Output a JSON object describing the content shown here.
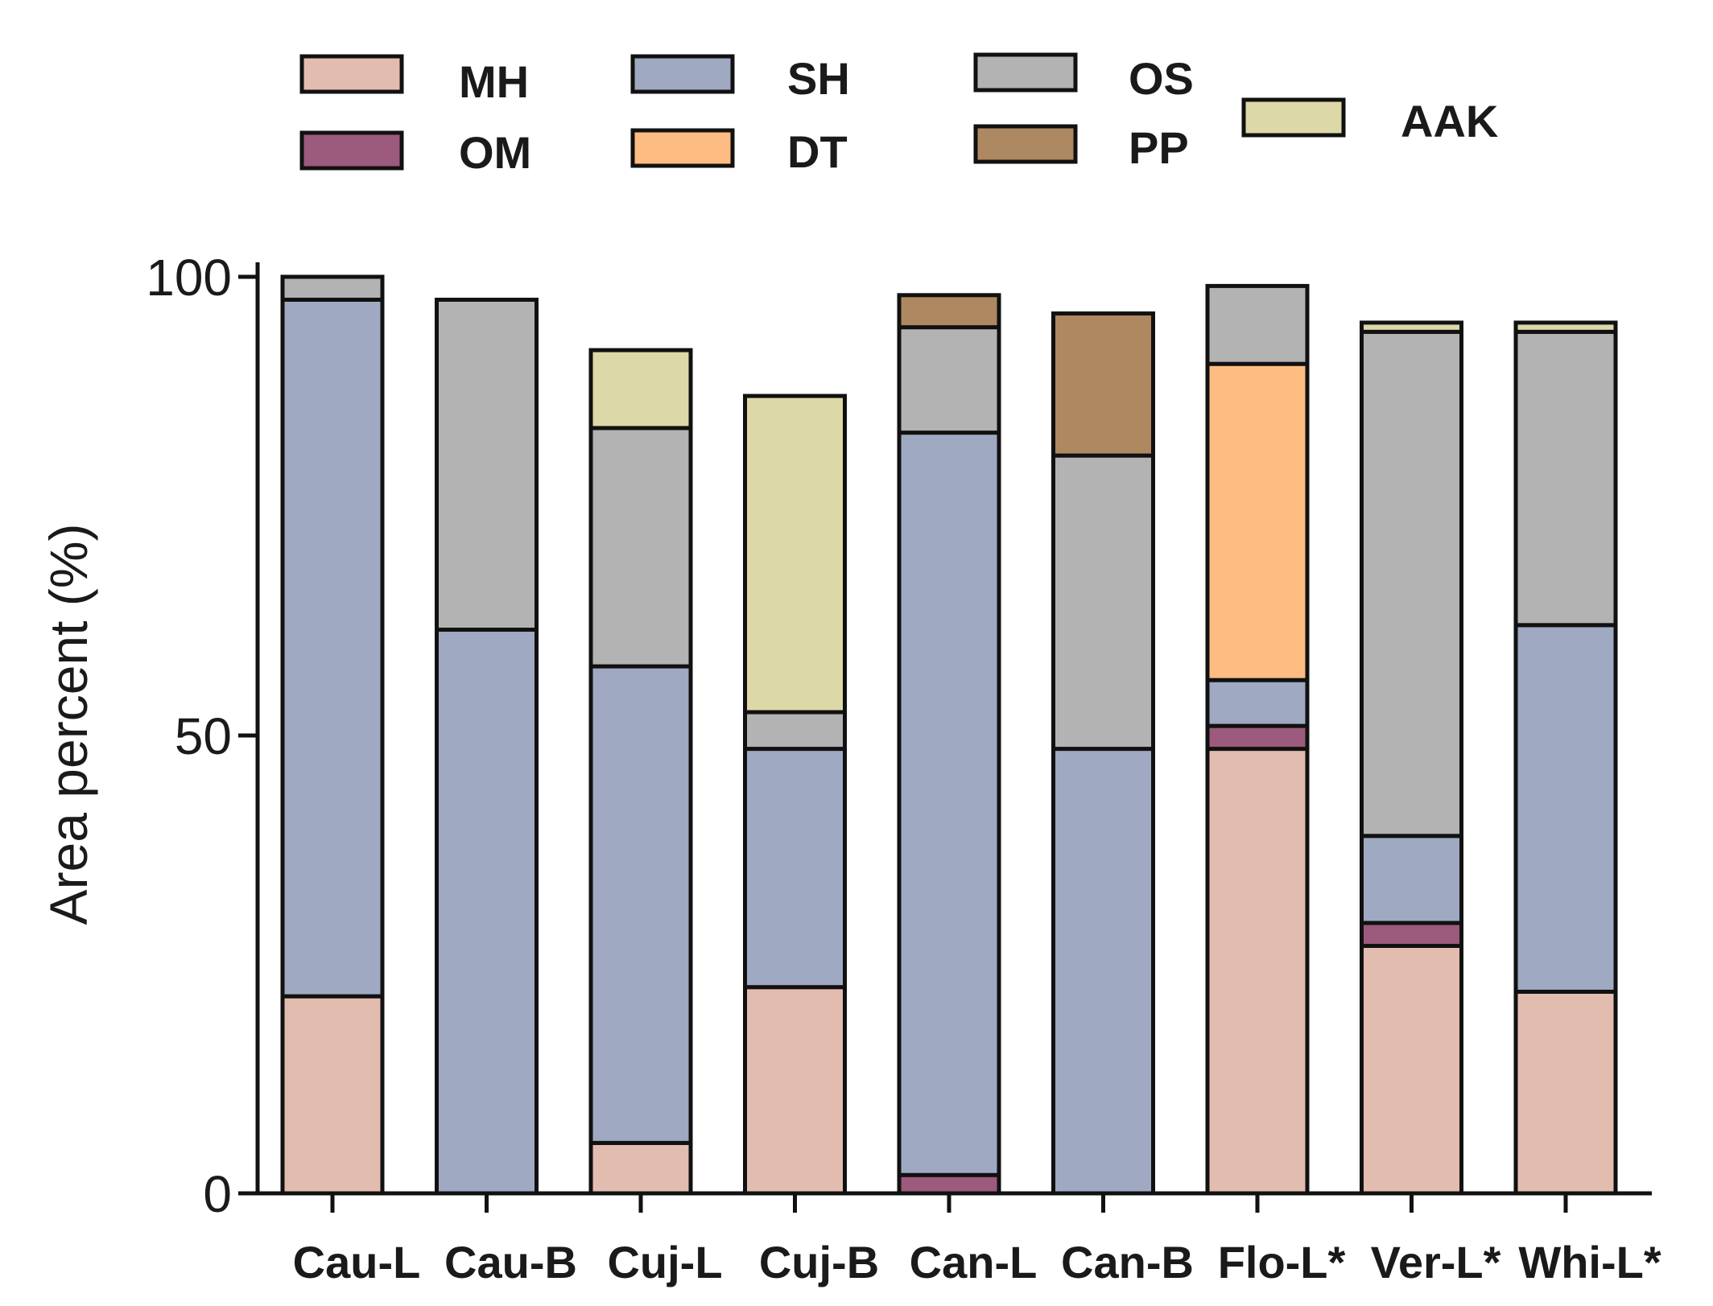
{
  "chart_data": {
    "type": "stacked_bar",
    "title": "",
    "xlabel": "",
    "ylabel": "Area percent (%)",
    "ylim": [
      0,
      100
    ],
    "yticks": [
      "0",
      "50",
      "100"
    ],
    "grid": false,
    "legend_position": "top",
    "categories": [
      "Cau-L",
      "Cau-B",
      "Cuj-L",
      "Cuj-B",
      "Can-L",
      "Can-B",
      "Flo-L*",
      "Ver-L*",
      "Whi-L*"
    ],
    "series": [
      {
        "name": "MH",
        "color": "#e3bcb0",
        "values": [
          21.5,
          0,
          5.5,
          22.5,
          0,
          0,
          48.5,
          27,
          22
        ]
      },
      {
        "name": "OM",
        "color": "#9c5a7c",
        "values": [
          0,
          0,
          0,
          0,
          2,
          0,
          2.5,
          2.5,
          0
        ]
      },
      {
        "name": "SH",
        "color": "#a0a9c2",
        "values": [
          76,
          61.5,
          52,
          26,
          81,
          48.5,
          5,
          9.5,
          40
        ]
      },
      {
        "name": "DT",
        "color": "#fdbc82",
        "values": [
          0,
          0,
          0,
          0,
          0,
          0,
          34.5,
          0,
          0
        ]
      },
      {
        "name": "OS",
        "color": "#b3b3b3",
        "values": [
          2.5,
          36,
          26,
          4,
          11.5,
          32,
          8.5,
          55,
          32
        ]
      },
      {
        "name": "PP",
        "color": "#ad8860",
        "values": [
          0,
          0,
          0,
          0,
          3.5,
          15.5,
          0,
          0,
          0
        ]
      },
      {
        "name": "AAK",
        "color": "#ddd8a8",
        "values": [
          0,
          0,
          8.5,
          34.5,
          0,
          0,
          0,
          1,
          1
        ]
      }
    ]
  }
}
